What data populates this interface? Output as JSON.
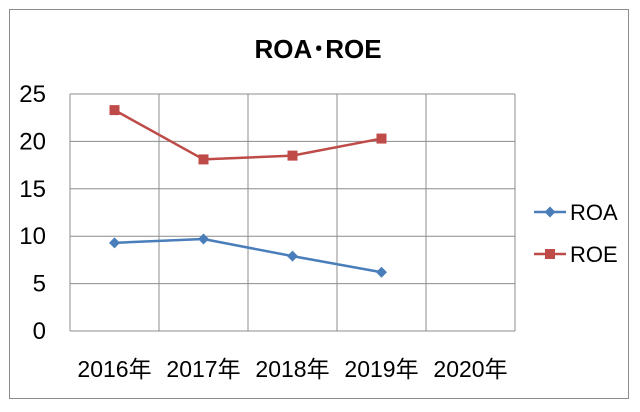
{
  "chart_data": {
    "type": "line",
    "title": "ROA･ROE",
    "categories": [
      "2016年",
      "2017年",
      "2018年",
      "2019年",
      "2020年"
    ],
    "ylim": [
      0,
      25
    ],
    "yticks": [
      "0",
      "5",
      "10",
      "15",
      "20",
      "25"
    ],
    "grid": true,
    "legend_position": "right",
    "series": [
      {
        "name": "ROA",
        "color": "#4a7ebb",
        "marker": "diamond",
        "values": [
          9.3,
          9.7,
          7.9,
          6.2,
          null
        ]
      },
      {
        "name": "ROE",
        "color": "#be4b48",
        "marker": "square",
        "values": [
          23.3,
          18.1,
          18.5,
          20.3,
          null
        ]
      }
    ]
  }
}
